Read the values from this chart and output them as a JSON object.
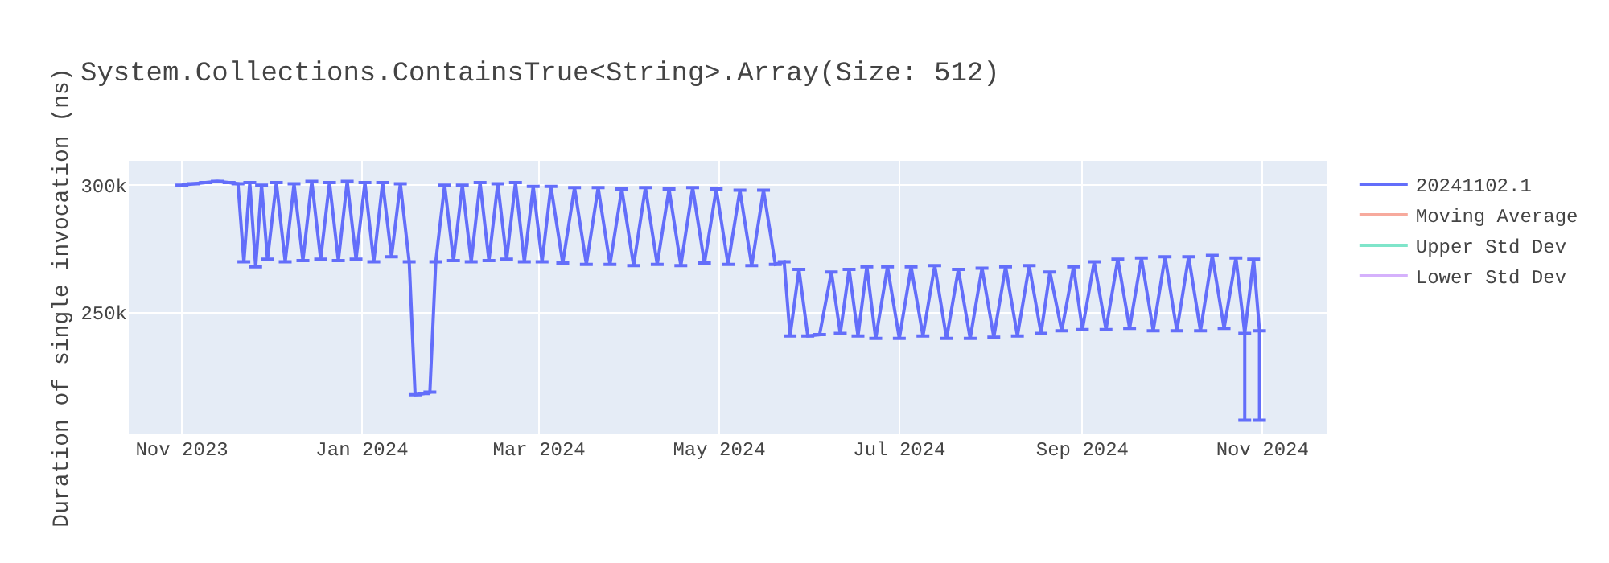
{
  "chart_data": {
    "type": "line",
    "title": "System.Collections.ContainsTrue<String>.Array(Size: 512)",
    "ylabel": "Duration of single invocation (ns)",
    "x": [
      "2023-11-01",
      "2023-11-05",
      "2023-11-09",
      "2023-11-13",
      "2023-11-17",
      "2023-11-20",
      "2023-11-22",
      "2023-11-24",
      "2023-11-26",
      "2023-11-28",
      "2023-11-30",
      "2023-12-03",
      "2023-12-06",
      "2023-12-09",
      "2023-12-12",
      "2023-12-15",
      "2023-12-18",
      "2023-12-21",
      "2023-12-24",
      "2023-12-27",
      "2023-12-30",
      "2024-01-02",
      "2024-01-05",
      "2024-01-08",
      "2024-01-11",
      "2024-01-14",
      "2024-01-17",
      "2024-01-19",
      "2024-01-22",
      "2024-01-24",
      "2024-01-26",
      "2024-01-29",
      "2024-02-01",
      "2024-02-04",
      "2024-02-07",
      "2024-02-10",
      "2024-02-13",
      "2024-02-16",
      "2024-02-19",
      "2024-02-22",
      "2024-02-25",
      "2024-02-28",
      "2024-03-02",
      "2024-03-05",
      "2024-03-09",
      "2024-03-13",
      "2024-03-17",
      "2024-03-21",
      "2024-03-25",
      "2024-03-29",
      "2024-04-02",
      "2024-04-06",
      "2024-04-10",
      "2024-04-14",
      "2024-04-18",
      "2024-04-22",
      "2024-04-26",
      "2024-04-30",
      "2024-05-04",
      "2024-05-08",
      "2024-05-12",
      "2024-05-16",
      "2024-05-20",
      "2024-05-23",
      "2024-05-25",
      "2024-05-28",
      "2024-05-31",
      "2024-06-04",
      "2024-06-08",
      "2024-06-11",
      "2024-06-14",
      "2024-06-17",
      "2024-06-20",
      "2024-06-23",
      "2024-06-27",
      "2024-07-01",
      "2024-07-05",
      "2024-07-09",
      "2024-07-13",
      "2024-07-17",
      "2024-07-21",
      "2024-07-25",
      "2024-07-29",
      "2024-08-02",
      "2024-08-06",
      "2024-08-10",
      "2024-08-14",
      "2024-08-18",
      "2024-08-21",
      "2024-08-25",
      "2024-08-29",
      "2024-09-01",
      "2024-09-05",
      "2024-09-09",
      "2024-09-13",
      "2024-09-17",
      "2024-09-21",
      "2024-09-25",
      "2024-09-29",
      "2024-10-03",
      "2024-10-07",
      "2024-10-11",
      "2024-10-15",
      "2024-10-19",
      "2024-10-23",
      "2024-10-26",
      "2024-10-29",
      "2024-10-31"
    ],
    "series": [
      {
        "name": "20241102.1",
        "color": "#636efa",
        "values": [
          300000,
          300500,
          301000,
          301500,
          301000,
          300500,
          270000,
          301000,
          268000,
          300000,
          271000,
          301000,
          270000,
          300500,
          270500,
          301500,
          271000,
          301000,
          270500,
          301500,
          271000,
          301000,
          270000,
          301000,
          272000,
          300500,
          270000,
          218000,
          218500,
          219000,
          270000,
          300000,
          270500,
          300000,
          270000,
          301000,
          270500,
          300500,
          271000,
          301000,
          270000,
          299500,
          270000,
          299500,
          269500,
          299000,
          269000,
          299000,
          269000,
          298500,
          268500,
          299000,
          269000,
          298500,
          268500,
          299000,
          269500,
          298500,
          269000,
          298000,
          268500,
          298000,
          269000,
          270000,
          241000,
          267000,
          241000,
          241500,
          266000,
          242000,
          267000,
          241000,
          268000,
          240000,
          268000,
          240000,
          268000,
          241000,
          268500,
          240000,
          267000,
          240000,
          267500,
          240500,
          268000,
          241000,
          268500,
          242000,
          266000,
          243000,
          268000,
          243500,
          270000,
          243500,
          271000,
          244000,
          271500,
          243000,
          272000,
          243000,
          272000,
          243000,
          272500,
          244000,
          271500,
          242000,
          271000,
          243000
        ],
        "errors": [
          null,
          null,
          null,
          null,
          null,
          null,
          null,
          null,
          null,
          null,
          null,
          null,
          null,
          null,
          null,
          null,
          null,
          null,
          null,
          null,
          null,
          null,
          null,
          null,
          null,
          null,
          null,
          null,
          null,
          null,
          null,
          null,
          null,
          null,
          null,
          null,
          null,
          null,
          null,
          null,
          null,
          null,
          null,
          null,
          null,
          null,
          null,
          null,
          null,
          null,
          null,
          null,
          null,
          null,
          null,
          null,
          null,
          null,
          null,
          null,
          null,
          null,
          null,
          null,
          null,
          null,
          null,
          null,
          null,
          null,
          null,
          null,
          null,
          null,
          null,
          null,
          null,
          null,
          null,
          null,
          null,
          null,
          null,
          null,
          null,
          null,
          null,
          null,
          null,
          null,
          null,
          null,
          null,
          null,
          null,
          null,
          null,
          null,
          null,
          null,
          null,
          null,
          null,
          null,
          null,
          [
            208000,
            242000
          ],
          null,
          [
            208000,
            243000
          ]
        ]
      },
      {
        "name": "Moving Average",
        "color": "#ef553b",
        "values": [
          null,
          null,
          null,
          null,
          null,
          null,
          null,
          null,
          null,
          null,
          null,
          null,
          null,
          null,
          null,
          null,
          null,
          null,
          null,
          null,
          null,
          null,
          null,
          null,
          null,
          null,
          null,
          null,
          null,
          null,
          null,
          null,
          null,
          null,
          null,
          null,
          null,
          null,
          null,
          null,
          null,
          null,
          null,
          null,
          null,
          null,
          null,
          null,
          null,
          null,
          null,
          null,
          null,
          null,
          null,
          null,
          null,
          null,
          null,
          null,
          null,
          null,
          null,
          null,
          null,
          null,
          null,
          null,
          null,
          null,
          null,
          null,
          null,
          null,
          null,
          null,
          null,
          null,
          null,
          null,
          null,
          null,
          null,
          null,
          null,
          null,
          null,
          null,
          null,
          null,
          null,
          null,
          null,
          null,
          null,
          null,
          null,
          null,
          null,
          null,
          null,
          null,
          null,
          null,
          null,
          null,
          null,
          null
        ]
      },
      {
        "name": "Upper Std Dev",
        "color": "#00cc96",
        "values": [
          null,
          null,
          null,
          null,
          null,
          null,
          null,
          null,
          null,
          null,
          null,
          null,
          null,
          null,
          null,
          null,
          null,
          null,
          null,
          null,
          null,
          null,
          null,
          null,
          null,
          null,
          null,
          null,
          null,
          null,
          null,
          null,
          null,
          null,
          null,
          null,
          null,
          null,
          null,
          null,
          null,
          null,
          null,
          null,
          null,
          null,
          null,
          null,
          null,
          null,
          null,
          null,
          null,
          null,
          null,
          null,
          null,
          null,
          null,
          null,
          null,
          null,
          null,
          null,
          null,
          null,
          null,
          null,
          null,
          null,
          null,
          null,
          null,
          null,
          null,
          null,
          null,
          null,
          null,
          null,
          null,
          null,
          null,
          null,
          null,
          null,
          null,
          null,
          null,
          null,
          null,
          null,
          null,
          null,
          null,
          null,
          null,
          null,
          null,
          null,
          null,
          null,
          null,
          null,
          null,
          null,
          null,
          null
        ]
      },
      {
        "name": "Lower Std Dev",
        "color": "#ab63fa",
        "values": [
          null,
          null,
          null,
          null,
          null,
          null,
          null,
          null,
          null,
          null,
          null,
          null,
          null,
          null,
          null,
          null,
          null,
          null,
          null,
          null,
          null,
          null,
          null,
          null,
          null,
          null,
          null,
          null,
          null,
          null,
          null,
          null,
          null,
          null,
          null,
          null,
          null,
          null,
          null,
          null,
          null,
          null,
          null,
          null,
          null,
          null,
          null,
          null,
          null,
          null,
          null,
          null,
          null,
          null,
          null,
          null,
          null,
          null,
          null,
          null,
          null,
          null,
          null,
          null,
          null,
          null,
          null,
          null,
          null,
          null,
          null,
          null,
          null,
          null,
          null,
          null,
          null,
          null,
          null,
          null,
          null,
          null,
          null,
          null,
          null,
          null,
          null,
          null,
          null,
          null,
          null,
          null,
          null,
          null,
          null,
          null,
          null,
          null,
          null,
          null,
          null,
          null,
          null,
          null,
          null,
          null,
          null,
          null
        ]
      }
    ],
    "xlim": [
      "2023-10-14",
      "2024-11-23"
    ],
    "xticks": [
      {
        "value": "2023-11-01",
        "label": "Nov 2023"
      },
      {
        "value": "2024-01-01",
        "label": "Jan 2024"
      },
      {
        "value": "2024-03-01",
        "label": "Mar 2024"
      },
      {
        "value": "2024-05-01",
        "label": "May 2024"
      },
      {
        "value": "2024-07-01",
        "label": "Jul 2024"
      },
      {
        "value": "2024-09-01",
        "label": "Sep 2024"
      },
      {
        "value": "2024-11-01",
        "label": "Nov 2024"
      }
    ],
    "ylim": [
      202500,
      309500
    ],
    "yticks": [
      {
        "value": 250000,
        "label": "250k"
      },
      {
        "value": 300000,
        "label": "300k"
      }
    ],
    "grid": true,
    "legend": "top right"
  }
}
